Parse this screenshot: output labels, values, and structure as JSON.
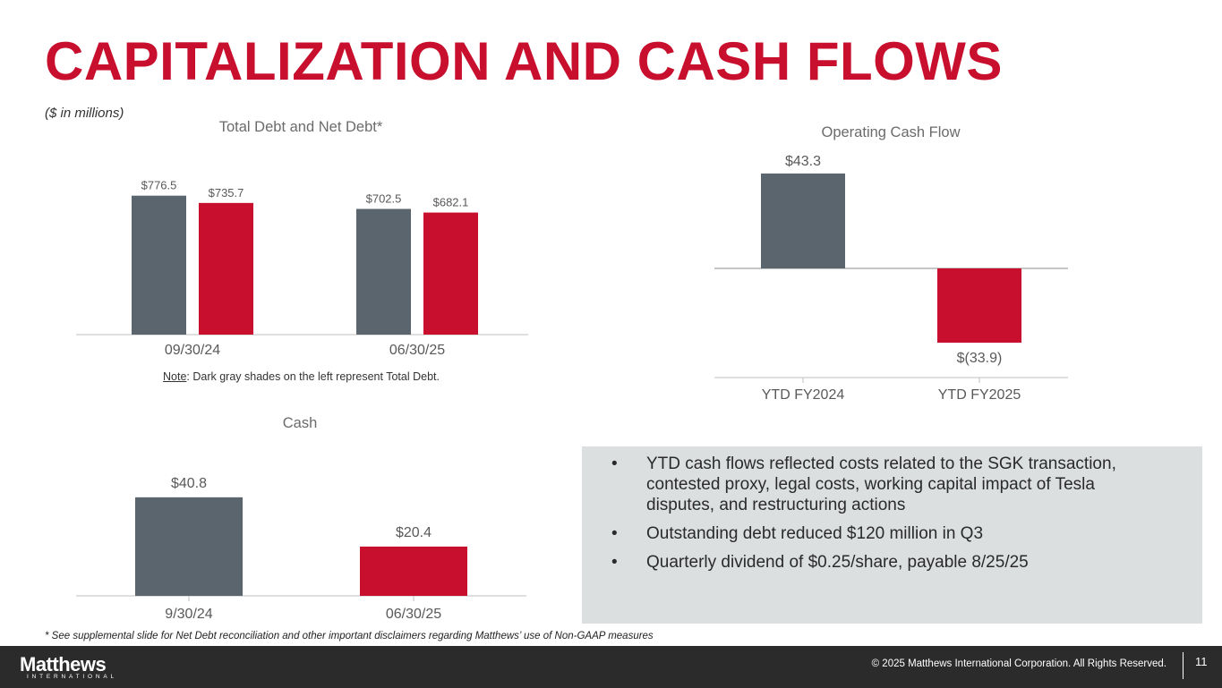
{
  "title": "CAPITALIZATION AND CASH FLOWS",
  "units": "($ in millions)",
  "note": {
    "label": "Note",
    "text": ": Dark gray shades on the left represent Total Debt."
  },
  "footnote": "* See supplemental slide for Net Debt reconciliation and other important disclaimers regarding Matthews’ use of Non-GAAP measures",
  "colors": {
    "gray": "#5a656e",
    "red": "#c8102e",
    "title_red": "#c8102e",
    "callout_bg": "#dcdfe0",
    "footer_bg": "#2b2b2b"
  },
  "bullets": [
    "YTD cash flows reflected costs related to the SGK transaction, contested proxy, legal costs, working capital impact of Tesla disputes, and restructuring actions",
    "Outstanding debt reduced $120 million in Q3",
    "Quarterly dividend of $0.25/share, payable 8/25/25"
  ],
  "bullet_symbol": "•",
  "footer": {
    "logo": "Matthews",
    "logo_sub": "INTERNATIONAL",
    "copyright": "© 2025 Matthews International Corporation. All Rights Reserved.",
    "page": "11"
  },
  "chart_data": [
    {
      "type": "bar",
      "title": "Total Debt and Net Debt*",
      "categories": [
        "09/30/24",
        "06/30/25"
      ],
      "series": [
        {
          "values": [
            776.5,
            702.5
          ],
          "labels": [
            "$776.5",
            "$702.5"
          ],
          "color": "#5a656e"
        },
        {
          "values": [
            735.7,
            682.1
          ],
          "labels": [
            "$735.7",
            "$682.1"
          ],
          "color": "#c8102e"
        }
      ]
    },
    {
      "type": "bar",
      "title": "Operating Cash Flow",
      "categories": [
        "YTD FY2024",
        "YTD FY2025"
      ],
      "values": [
        43.3,
        -33.9
      ],
      "labels": [
        "$43.3",
        "$(33.9)"
      ],
      "colors": [
        "#5a656e",
        "#c8102e"
      ]
    },
    {
      "type": "bar",
      "title": "Cash",
      "categories": [
        "9/30/24",
        "06/30/25"
      ],
      "values": [
        40.8,
        20.4
      ],
      "labels": [
        "$40.8",
        "$20.4"
      ],
      "colors": [
        "#5a656e",
        "#c8102e"
      ]
    }
  ]
}
